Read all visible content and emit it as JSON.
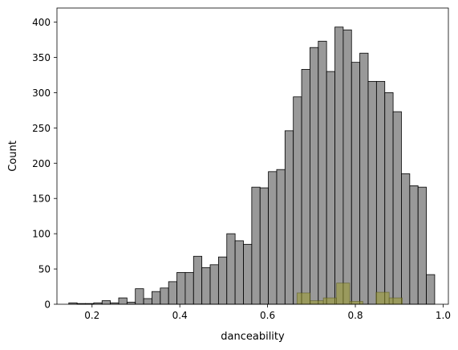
{
  "chart_data": {
    "type": "bar",
    "xlabel": "danceability",
    "ylabel": "Count",
    "xlim": [
      0.12,
      1.012
    ],
    "ylim": [
      0,
      420
    ],
    "xticks": [
      0.2,
      0.4,
      0.6,
      0.8,
      1.0
    ],
    "xtick_labels": [
      "0.2",
      "0.4",
      "0.6",
      "0.8",
      "1.0"
    ],
    "yticks": [
      0,
      50,
      100,
      150,
      200,
      250,
      300,
      350,
      400
    ],
    "ytick_labels": [
      "0",
      "50",
      "100",
      "150",
      "200",
      "250",
      "300",
      "350",
      "400"
    ],
    "grid": false,
    "series": [
      {
        "color": "#808080",
        "bin_start": 0.147,
        "bin_width": 0.01895,
        "counts": [
          2,
          1,
          1,
          2,
          5,
          2,
          9,
          3,
          22,
          8,
          18,
          23,
          32,
          45,
          45,
          68,
          52,
          56,
          67,
          100,
          90,
          85,
          166,
          165,
          188,
          191,
          246,
          294,
          333,
          364,
          373,
          330,
          393,
          389,
          343,
          356,
          316,
          316,
          300,
          273,
          185,
          168,
          166,
          42
        ]
      },
      {
        "color": "#9a9a2e",
        "bin_start": 0.6671,
        "bin_width": 0.03,
        "counts": [
          16,
          5,
          9,
          30,
          4,
          0,
          17,
          9
        ]
      }
    ]
  }
}
